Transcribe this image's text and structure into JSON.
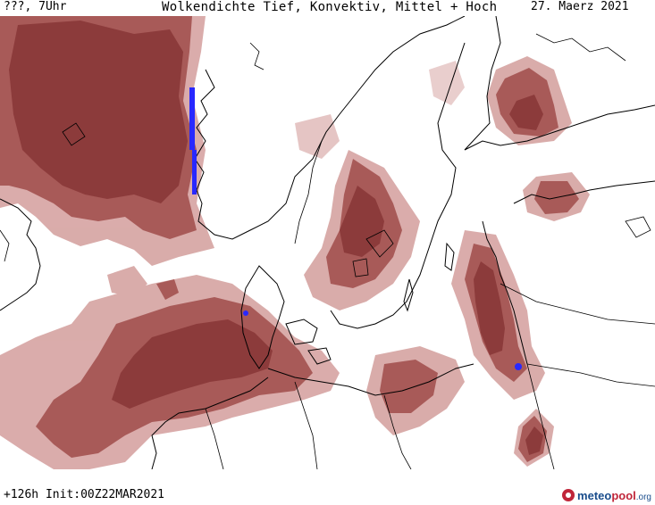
{
  "header": {
    "left_label": "???, 7Uhr",
    "title": "Wolkendichte  Tief, Konvektiv, Mittel + Hoch",
    "date": "27. Maerz 2021"
  },
  "footer": {
    "init_label": "+126h  Init:00Z22MAR2021",
    "logo": {
      "meteo": "meteo",
      "pool": "pool",
      "org": ".org"
    }
  },
  "colors": {
    "cloud_dark": "#8c3b3b",
    "cloud_mid": "#a85a58",
    "cloud_light": "#d8a8a6",
    "coast": "#000000",
    "precip": "#2828ff",
    "background": "#ffffff"
  }
}
